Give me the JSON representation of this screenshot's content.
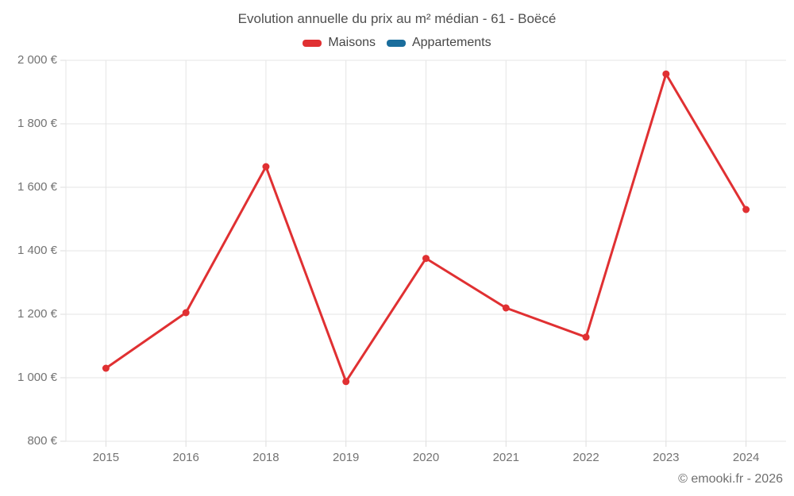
{
  "header": {
    "title": "Evolution annuelle du prix au m² médian - 61 - Boëcé"
  },
  "legend": {
    "items": [
      {
        "label": "Maisons",
        "color": "#e03032"
      },
      {
        "label": "Appartements",
        "color": "#1a6d9c"
      }
    ]
  },
  "footer": {
    "credit": "© emooki.fr - 2026"
  },
  "chart_data": {
    "type": "line",
    "title": "Evolution annuelle du prix au m² médian - 61 - Boëcé",
    "categories": [
      "2015",
      "2016",
      "2018",
      "2019",
      "2020",
      "2021",
      "2022",
      "2023",
      "2024"
    ],
    "series": [
      {
        "name": "Maisons",
        "color": "#e03032",
        "values": [
          1030,
          1205,
          1665,
          988,
          1376,
          1220,
          1128,
          1957,
          1530
        ]
      },
      {
        "name": "Appartements",
        "color": "#1a6d9c",
        "values": []
      }
    ],
    "xlabel": "",
    "ylabel": "",
    "ylim": [
      800,
      2000
    ],
    "y_ticks": [
      {
        "value": 800,
        "label": "800 €"
      },
      {
        "value": 1000,
        "label": "1 000 €"
      },
      {
        "value": 1200,
        "label": "1 200 €"
      },
      {
        "value": 1400,
        "label": "1 400 €"
      },
      {
        "value": 1600,
        "label": "1 600 €"
      },
      {
        "value": 1800,
        "label": "1 800 €"
      },
      {
        "value": 2000,
        "label": "2 000 €"
      }
    ],
    "grid": true,
    "grid_color": "#e5e5e5",
    "legend_position": "top",
    "point_radius": 4.5,
    "line_width": 3
  }
}
